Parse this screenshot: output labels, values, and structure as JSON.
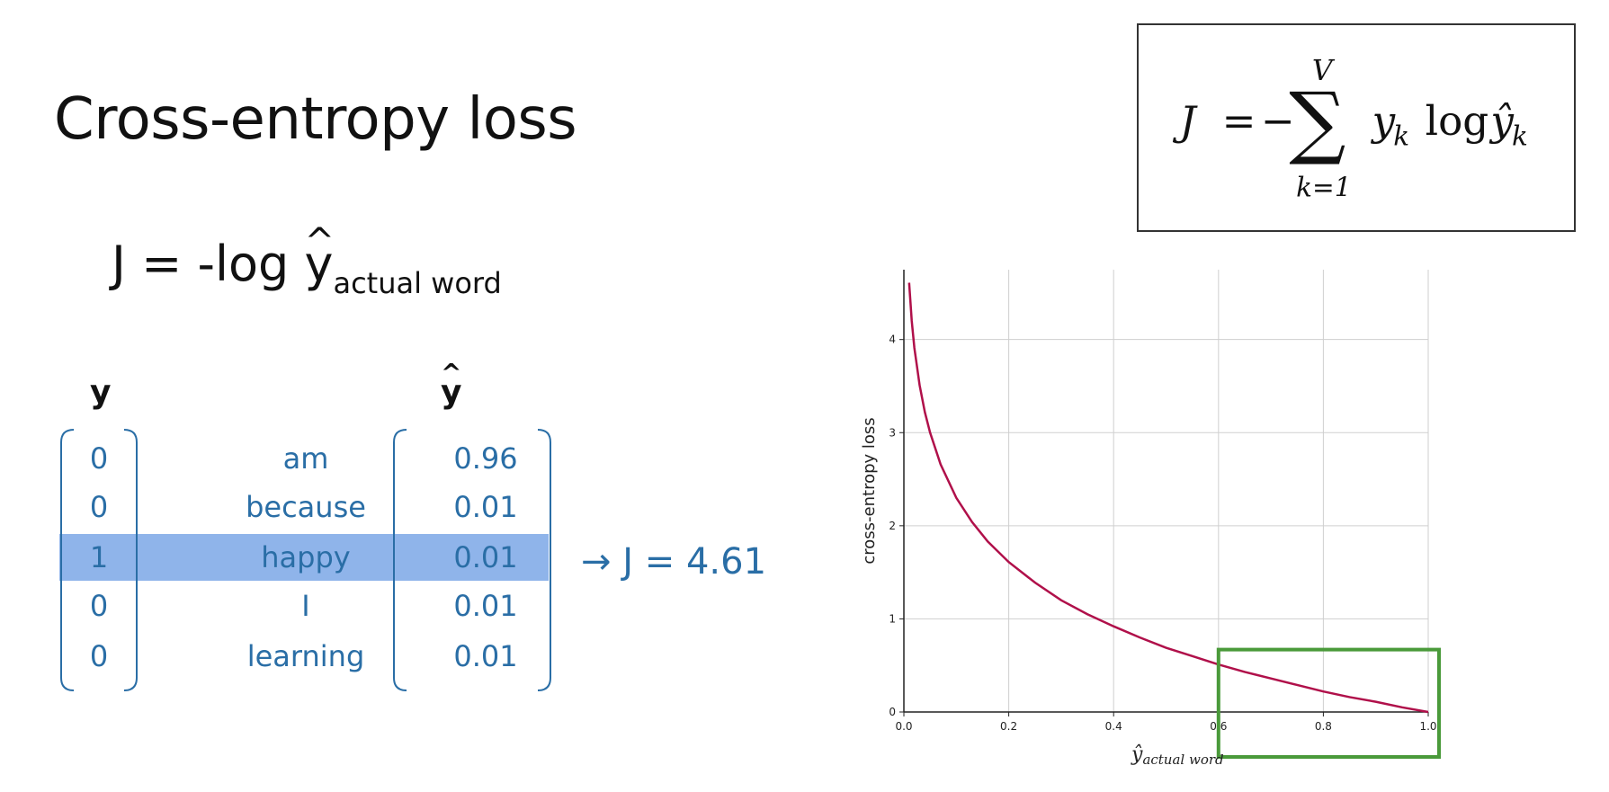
{
  "slide": {
    "title": "Cross-entropy loss",
    "equation": {
      "lhs": "J = -log ",
      "y": "y",
      "hat": "^",
      "subscript": "actual word"
    },
    "formula": {
      "J": "J",
      "eq": "=",
      "minus": "−",
      "sum": "∑",
      "upper": "V",
      "lower": "k=1",
      "y": "y",
      "k": "k",
      "log": "log",
      "yhat": "ŷ",
      "k2": "k"
    }
  },
  "table": {
    "header_y": "y",
    "header_yhat_base": "y",
    "header_yhat_hat": "^",
    "rows": [
      {
        "y": "0",
        "word": "am",
        "p": "0.96"
      },
      {
        "y": "0",
        "word": "because",
        "p": "0.01"
      },
      {
        "y": "1",
        "word": "happy",
        "p": "0.01"
      },
      {
        "y": "0",
        "word": "I",
        "p": "0.01"
      },
      {
        "y": "0",
        "word": "learning",
        "p": "0.01"
      }
    ],
    "result": "→ J = 4.61",
    "highlight_color": "#8fb4ea",
    "text_color": "#2a6ea6"
  },
  "chart_data": {
    "type": "line",
    "title": "",
    "xlabel": "ŷ",
    "xlabel_sub": "actual word",
    "ylabel": "cross-entropy loss",
    "xlim": [
      0.0,
      1.0
    ],
    "ylim": [
      0,
      4.75
    ],
    "xticks": [
      "0.0",
      "0.2",
      "0.4",
      "0.6",
      "0.8",
      "1.0"
    ],
    "yticks": [
      "0",
      "1",
      "2",
      "3",
      "4"
    ],
    "grid": true,
    "line_color": "#b0104a",
    "highlight_region": {
      "x": [
        0.6,
        1.0
      ],
      "y": [
        0,
        0.67
      ],
      "color": "#4a9a3a"
    },
    "series": [
      {
        "x": [
          0.01,
          0.015,
          0.02,
          0.03,
          0.04,
          0.05,
          0.07,
          0.1,
          0.13,
          0.16,
          0.2,
          0.25,
          0.3,
          0.35,
          0.4,
          0.45,
          0.5,
          0.55,
          0.6,
          0.65,
          0.7,
          0.75,
          0.8,
          0.85,
          0.9,
          0.95,
          1.0
        ],
        "y": [
          4.61,
          4.2,
          3.91,
          3.51,
          3.22,
          3.0,
          2.66,
          2.3,
          2.04,
          1.83,
          1.61,
          1.39,
          1.2,
          1.05,
          0.92,
          0.8,
          0.69,
          0.6,
          0.51,
          0.43,
          0.36,
          0.29,
          0.22,
          0.16,
          0.11,
          0.05,
          0.0
        ]
      }
    ]
  }
}
